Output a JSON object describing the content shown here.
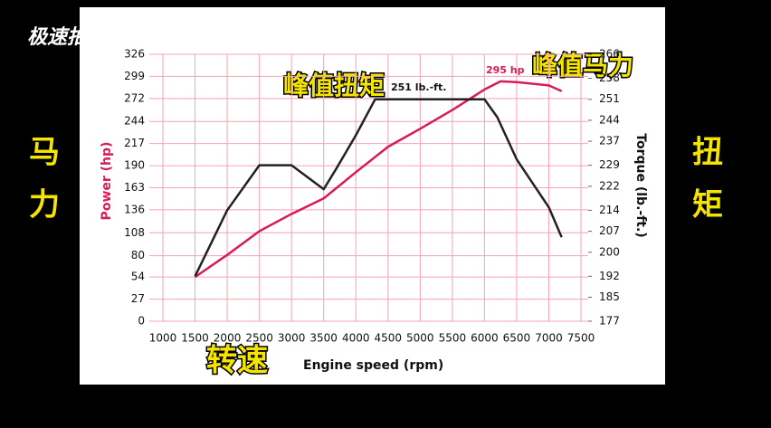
{
  "chart_data": {
    "type": "line",
    "xlabel": "Engine speed (rpm)",
    "ylabel": "Power (hp)",
    "y2label": "Torque (lb.-ft.)",
    "xlim": [
      1000,
      7500
    ],
    "xticks": [
      1000,
      1500,
      2000,
      2500,
      3000,
      3500,
      4000,
      4500,
      5000,
      5500,
      6000,
      6500,
      7000,
      7500
    ],
    "ylim": [
      0,
      326
    ],
    "yticks": [
      0,
      27,
      54,
      80,
      108,
      136,
      163,
      190,
      217,
      244,
      272,
      299,
      326
    ],
    "y2lim": [
      177,
      266
    ],
    "y2ticks": [
      177,
      185,
      192,
      200,
      207,
      214,
      222,
      229,
      237,
      244,
      251,
      258,
      266
    ],
    "grid": true,
    "series": [
      {
        "color": "#d81b5a",
        "x": [
          1500,
          2000,
          2500,
          3000,
          3500,
          4000,
          4500,
          5000,
          5500,
          6000,
          6250,
          6500,
          7000,
          7200
        ],
        "values": [
          54,
          81,
          110,
          131,
          150,
          182,
          213,
          235,
          258,
          283,
          293,
          292,
          288,
          281
        ]
      },
      {
        "color": "#222222",
        "axis": "y2",
        "x": [
          1500,
          2000,
          2500,
          3000,
          3500,
          3700,
          4000,
          4300,
          5000,
          6000,
          6200,
          6500,
          7000,
          7200
        ],
        "values": [
          192,
          214,
          229,
          229,
          221,
          228,
          239,
          251,
          251,
          251,
          245,
          231,
          215,
          205
        ]
      }
    ],
    "annotations": [
      "251 lb.-ft.",
      "295 hp"
    ]
  },
  "overlay": {
    "logo": "极速拍档",
    "left_label": "马力",
    "right_label": "扭矩",
    "x_label_cn": "转速",
    "torque_peak_cn": "峰值扭矩",
    "power_peak_cn": "峰值马力"
  }
}
